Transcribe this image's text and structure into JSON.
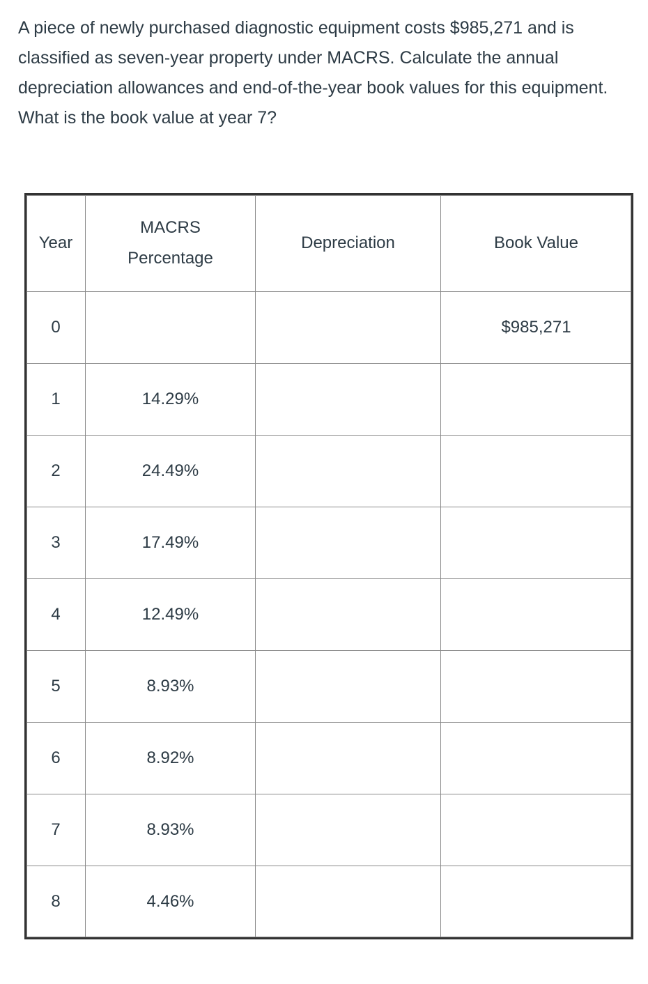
{
  "question": "A piece of newly purchased diagnostic equipment costs $985,271 and is classified as seven-year property under MACRS. Calculate the annual depreciation allowances and end-of-the-year book values for this equipment. What is the book value at year 7?",
  "table": {
    "headers": {
      "year": "Year",
      "macrs_line1": "MACRS",
      "macrs_line2": "Percentage",
      "depreciation": "Depreciation",
      "book_value": "Book Value"
    },
    "rows": [
      {
        "year": "0",
        "pct": "",
        "dep": "",
        "bv": "$985,271"
      },
      {
        "year": "1",
        "pct": "14.29%",
        "dep": "",
        "bv": ""
      },
      {
        "year": "2",
        "pct": "24.49%",
        "dep": "",
        "bv": ""
      },
      {
        "year": "3",
        "pct": "17.49%",
        "dep": "",
        "bv": ""
      },
      {
        "year": "4",
        "pct": "12.49%",
        "dep": "",
        "bv": ""
      },
      {
        "year": "5",
        "pct": "8.93%",
        "dep": "",
        "bv": ""
      },
      {
        "year": "6",
        "pct": "8.92%",
        "dep": "",
        "bv": ""
      },
      {
        "year": "7",
        "pct": "8.93%",
        "dep": "",
        "bv": ""
      },
      {
        "year": "8",
        "pct": "4.46%",
        "dep": "",
        "bv": ""
      }
    ]
  }
}
